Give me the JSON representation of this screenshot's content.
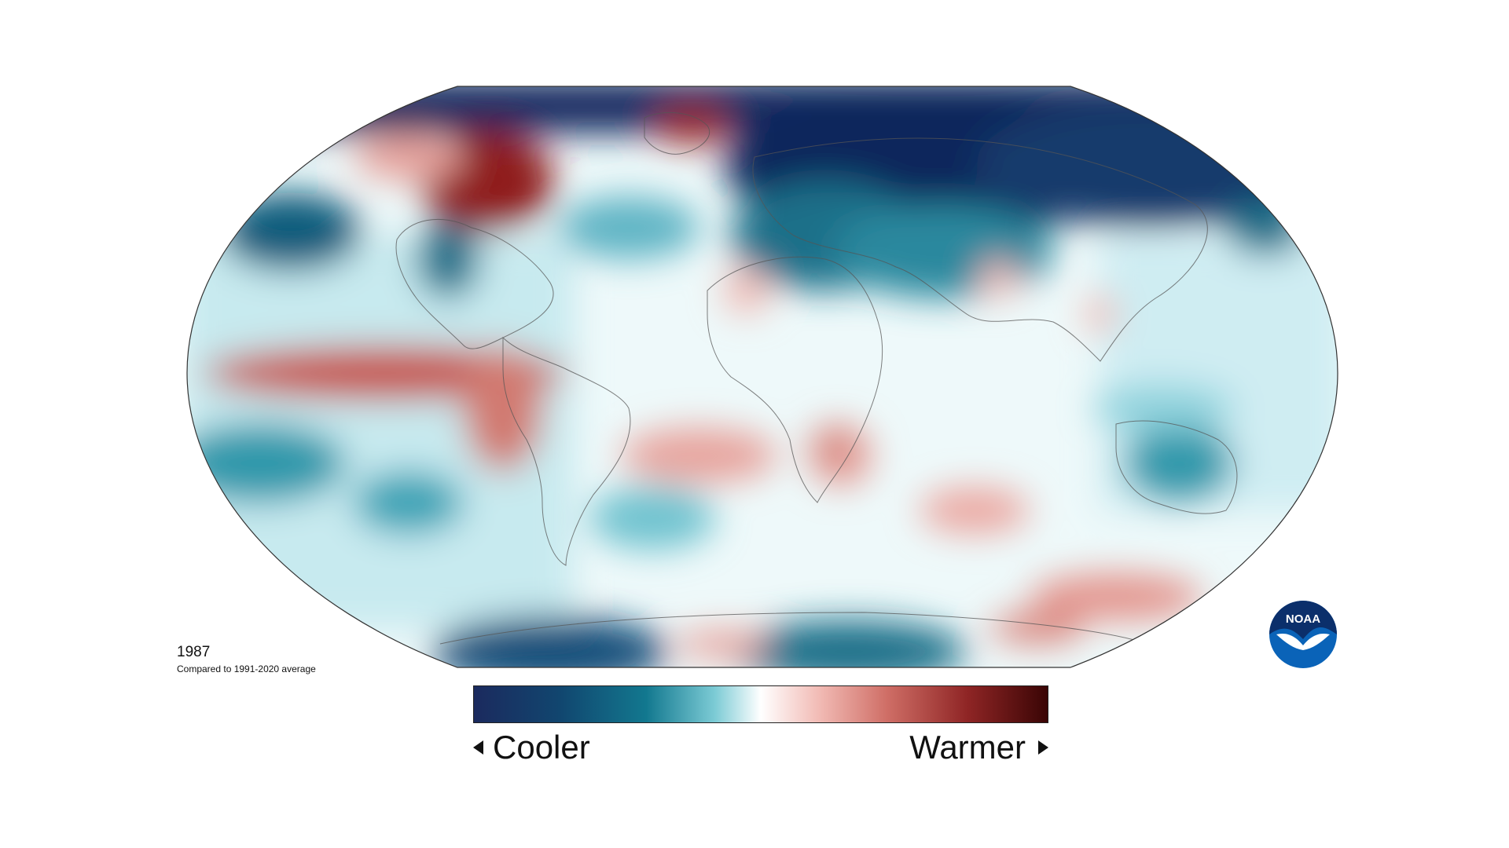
{
  "map": {
    "year": "1987",
    "subtitle": "Compared to 1991-2020 average",
    "projection": "robinson"
  },
  "legend": {
    "left_label": "Cooler",
    "right_label": "Warmer",
    "gradient_colors": [
      "#1b2a5e",
      "#0f5e7c",
      "#57b3c4",
      "#e8f7f8",
      "#ffffff",
      "#f4c9c4",
      "#c95a52",
      "#8c1f1f",
      "#3d0606"
    ]
  },
  "colors": {
    "cool_extreme": "#13285e",
    "cool_mid": "#2b8ba0",
    "cool_light": "#bfe6ec",
    "neutral": "#ffffff",
    "warm_light": "#f4c7c2",
    "warm_mid": "#c4504b",
    "warm_extreme": "#7a1414"
  },
  "logo": {
    "text": "NOAA",
    "icon": "noaa-logo-icon",
    "color": "#0a5fb4"
  }
}
